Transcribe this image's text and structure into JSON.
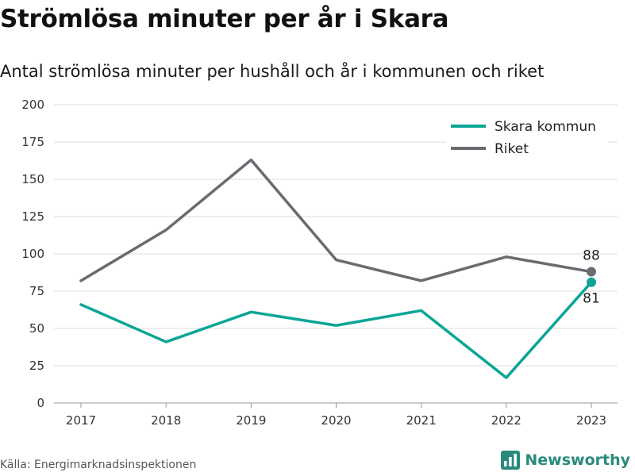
{
  "title": "Strömlösa minuter per år i Skara",
  "subtitle": "Antal strömlösa minuter per hushåll och år i kommunen och riket",
  "source": "Källa: Energimarknadsinspektionen",
  "brand": {
    "name": "Newsworthy",
    "color": "#2a8a7e",
    "icon": "bar-chart-icon"
  },
  "chart_data": {
    "type": "line",
    "x": [
      "2017",
      "2018",
      "2019",
      "2020",
      "2021",
      "2022",
      "2023"
    ],
    "series": [
      {
        "name": "Skara kommun",
        "color": "#0aa596",
        "values": [
          66,
          41,
          61,
          52,
          62,
          17,
          81
        ],
        "end_label": "81"
      },
      {
        "name": "Riket",
        "color": "#6b6a70",
        "values": [
          82,
          116,
          163,
          96,
          82,
          98,
          88
        ],
        "end_label": "88"
      }
    ],
    "ylim": [
      0,
      200
    ],
    "yticks": [
      "0",
      "25",
      "50",
      "75",
      "100",
      "125",
      "150",
      "175",
      "200"
    ],
    "grid": true,
    "legend": "top-right"
  }
}
